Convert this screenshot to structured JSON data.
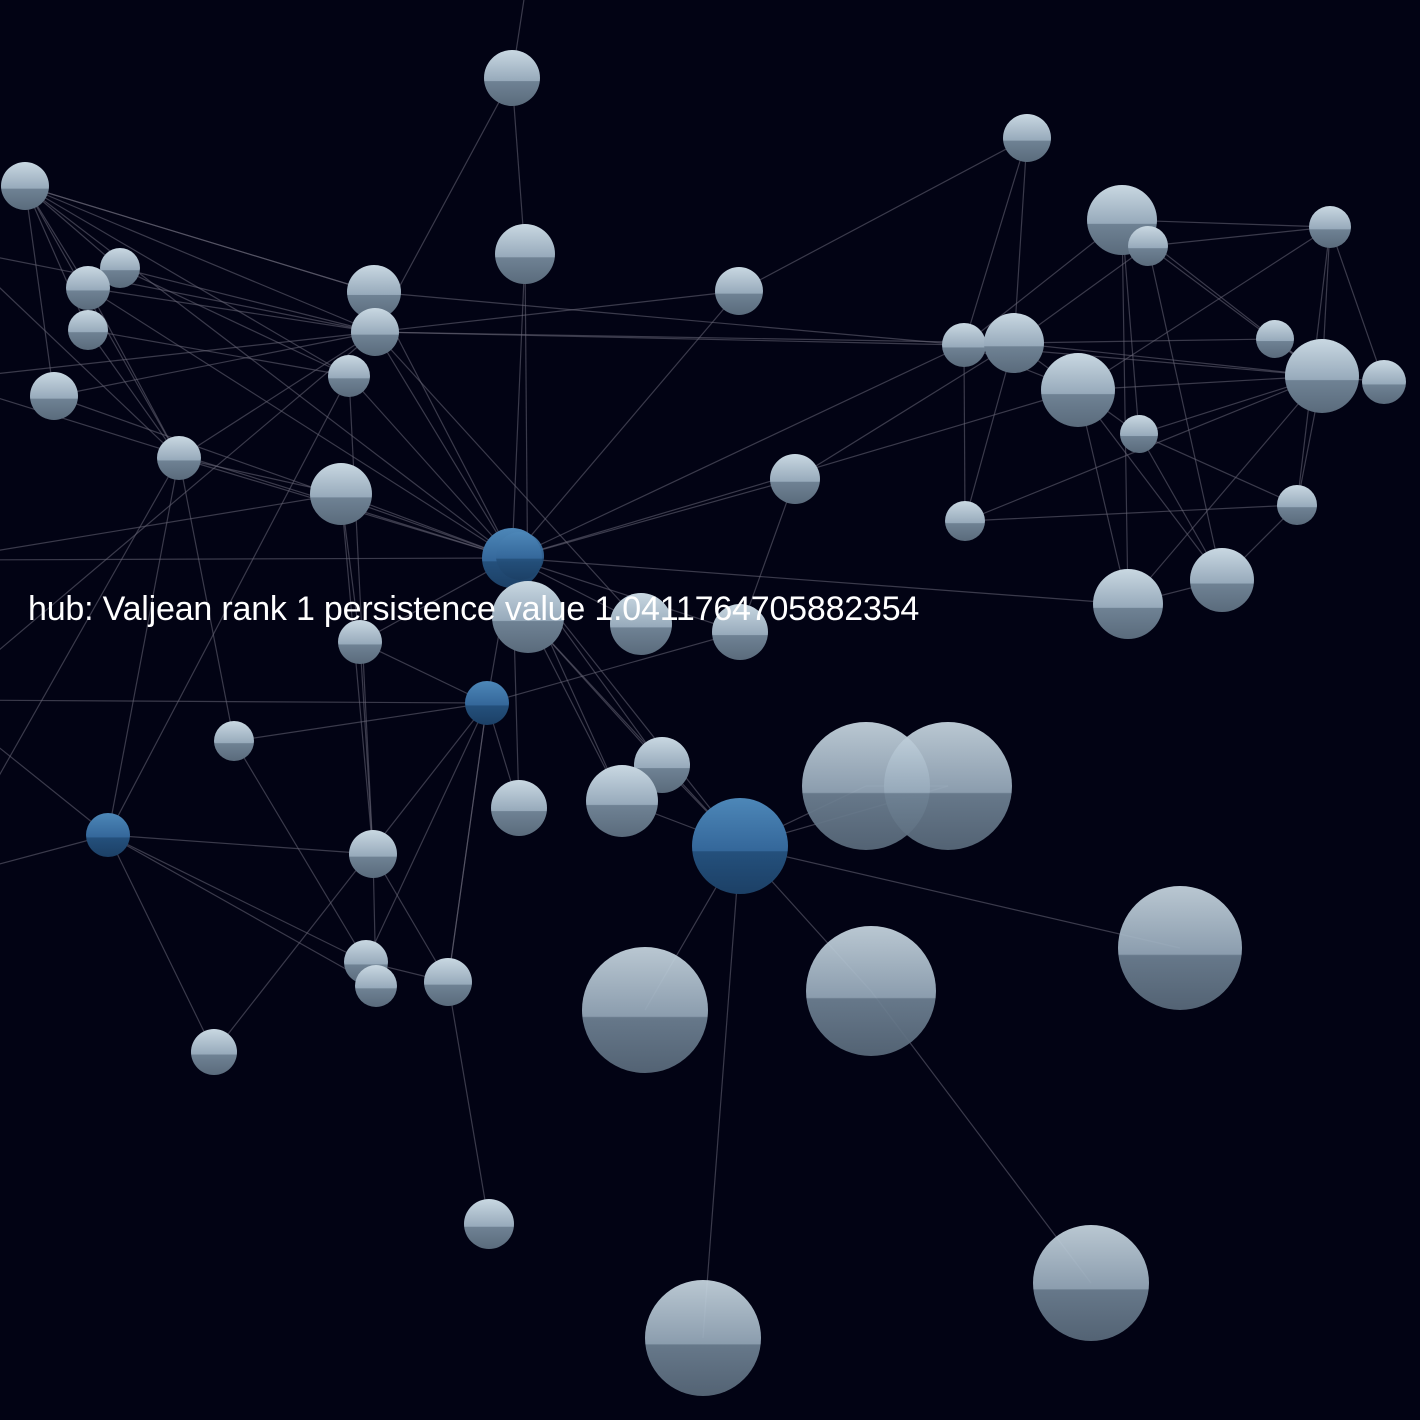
{
  "tooltip": {
    "text": "hub: Valjean rank 1 persistence value 1.0411764705882354"
  },
  "colors": {
    "background": "#020314",
    "link": "#6a6878",
    "node": "#a9bccb",
    "hub_node": "#3a6f9e"
  }
}
